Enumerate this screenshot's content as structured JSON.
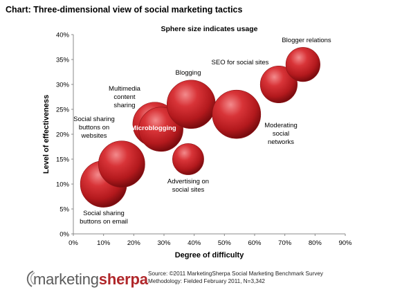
{
  "header": {
    "title": "Chart: Three-dimensional view of social marketing tactics"
  },
  "chart_data": {
    "type": "bubble",
    "subtitle": "Sphere size indicates usage",
    "xlabel": "Degree of difficulty",
    "ylabel": "Level of effectiveness",
    "xlim": [
      0,
      90
    ],
    "ylim": [
      0,
      40
    ],
    "x_ticks": [
      "0%",
      "10%",
      "20%",
      "30%",
      "40%",
      "50%",
      "60%",
      "70%",
      "80%",
      "90%"
    ],
    "y_ticks": [
      "0%",
      "5%",
      "10%",
      "15%",
      "20%",
      "25%",
      "30%",
      "35%",
      "40%"
    ],
    "bubble_color": "#c8282b",
    "points": [
      {
        "label": "Social sharing buttons on email",
        "x": 10,
        "y": 10,
        "usage": 5.5
      },
      {
        "label": "Social sharing buttons on websites",
        "x": 16,
        "y": 14,
        "usage": 5.5
      },
      {
        "label": "Microblogging",
        "x": 29,
        "y": 21,
        "usage": 5.0
      },
      {
        "label": "Multimedia content sharing",
        "x": 27,
        "y": 22,
        "usage": 5.0
      },
      {
        "label": "Blogging",
        "x": 39,
        "y": 26,
        "usage": 6.0
      },
      {
        "label": "Advertising on social sites",
        "x": 38,
        "y": 15,
        "usage": 2.5
      },
      {
        "label": "Moderating social networks",
        "x": 54,
        "y": 24,
        "usage": 6.0
      },
      {
        "label": "SEO for social sites",
        "x": 68,
        "y": 30,
        "usage": 3.5
      },
      {
        "label": "Blogger relations",
        "x": 76,
        "y": 34,
        "usage": 3.0
      }
    ]
  },
  "footer": {
    "logo_part1": "marketing",
    "logo_part2": "sherpa",
    "source": "Source: ©2011 MarketingSherpa Social Marketing Benchmark Survey",
    "methodology": "Methodology: Fielded February 2011, N=3,342"
  }
}
